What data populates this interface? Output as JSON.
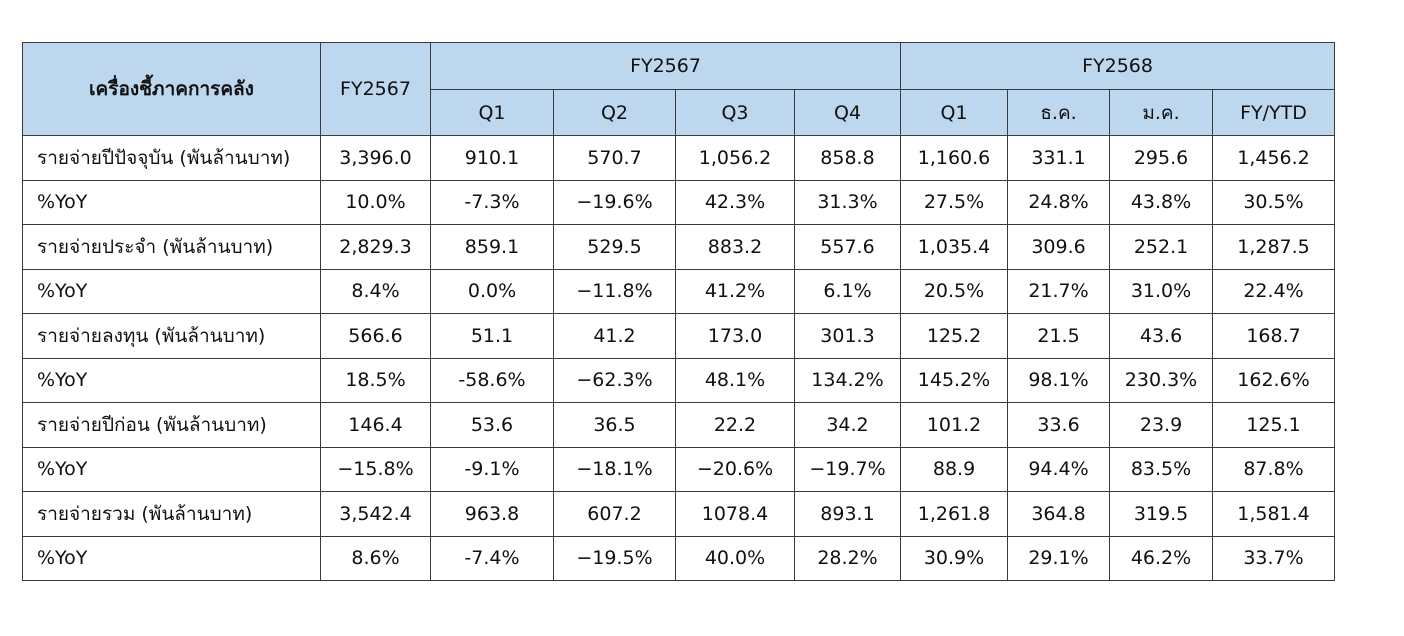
{
  "table": {
    "header": {
      "indicator": "เครื่องชี้ภาคการคลัง",
      "fy_total": "FY2567",
      "group_prev": "FY2567",
      "group_curr": "FY2568",
      "sub_columns": [
        "Q1",
        "Q2",
        "Q3",
        "Q4",
        "Q1",
        "ธ.ค.",
        "ม.ค.",
        "FY/YTD"
      ]
    },
    "rows": [
      {
        "label": "รายจ่ายปีปัจจุบัน (พันล้านบาท)",
        "values": [
          "3,396.0",
          "910.1",
          "570.7",
          "1,056.2",
          "858.8",
          "1,160.6",
          "331.1",
          "295.6",
          "1,456.2"
        ]
      },
      {
        "label": "%YoY",
        "values": [
          "10.0%",
          "-7.3%",
          "−19.6%",
          "42.3%",
          "31.3%",
          "27.5%",
          "24.8%",
          "43.8%",
          "30.5%"
        ]
      },
      {
        "label": "รายจ่ายประจำ (พันล้านบาท)",
        "values": [
          "2,829.3",
          "859.1",
          "529.5",
          "883.2",
          "557.6",
          "1,035.4",
          "309.6",
          "252.1",
          "1,287.5"
        ]
      },
      {
        "label": "%YoY",
        "values": [
          "8.4%",
          "0.0%",
          "−11.8%",
          "41.2%",
          "6.1%",
          "20.5%",
          "21.7%",
          "31.0%",
          "22.4%"
        ]
      },
      {
        "label": "รายจ่ายลงทุน (พันล้านบาท)",
        "values": [
          "566.6",
          "51.1",
          "41.2",
          "173.0",
          "301.3",
          "125.2",
          "21.5",
          "43.6",
          "168.7"
        ]
      },
      {
        "label": "%YoY",
        "values": [
          "18.5%",
          "-58.6%",
          "−62.3%",
          "48.1%",
          "134.2%",
          "145.2%",
          "98.1%",
          "230.3%",
          "162.6%"
        ]
      },
      {
        "label": "รายจ่ายปีก่อน (พันล้านบาท)",
        "values": [
          "146.4",
          "53.6",
          "36.5",
          "22.2",
          "34.2",
          "101.2",
          "33.6",
          "23.9",
          "125.1"
        ]
      },
      {
        "label": "%YoY",
        "values": [
          "−15.8%",
          "-9.1%",
          "−18.1%",
          "−20.6%",
          "−19.7%",
          "88.9",
          "94.4%",
          "83.5%",
          "87.8%"
        ]
      },
      {
        "label": "รายจ่ายรวม (พันล้านบาท)",
        "values": [
          "3,542.4",
          "963.8",
          "607.2",
          "1078.4",
          "893.1",
          "1,261.8",
          "364.8",
          "319.5",
          "1,581.4"
        ]
      },
      {
        "label": "%YoY",
        "values": [
          "8.6%",
          "-7.4%",
          "−19.5%",
          "40.0%",
          "28.2%",
          "30.9%",
          "29.1%",
          "46.2%",
          "33.7%"
        ]
      }
    ]
  },
  "colors": {
    "header_bg": "#bdd7ee",
    "border": "#3a3a3a",
    "text": "#111111"
  }
}
